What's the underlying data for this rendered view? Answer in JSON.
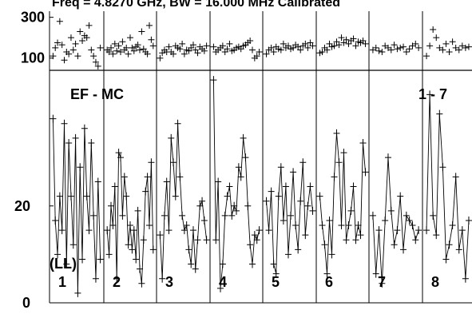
{
  "chart_data": {
    "type": "line",
    "header_text": "Freq = 4.8270 GHz, BW = 16.000 MHz  Calibrated",
    "plot_label": "EF - MC",
    "range_label": "1 - 7",
    "pol_label": "(LL)",
    "top_panel": {
      "ylim": [
        40,
        330
      ],
      "y_ticks": [
        "300",
        "100"
      ],
      "y_tick_values": [
        300,
        100
      ]
    },
    "main_panel": {
      "ylim": [
        0,
        48
      ],
      "y_ticks": [
        "20",
        "0"
      ],
      "y_tick_values": [
        20,
        0
      ]
    },
    "series": [
      {
        "label": "1",
        "amp": [
          110,
          150,
          175,
          280,
          165,
          90,
          130,
          120,
          200,
          140,
          170,
          110,
          230,
          185,
          210,
          200,
          260,
          140,
          110,
          80,
          60,
          150
        ],
        "val": [
          38,
          17,
          10,
          22,
          15,
          37,
          8,
          33,
          22,
          12,
          34,
          2,
          28,
          9,
          36,
          22,
          15,
          33,
          18,
          5,
          25,
          9
        ]
      },
      {
        "label": "2",
        "amp": [
          140,
          130,
          150,
          120,
          170,
          135,
          160,
          130,
          180,
          140,
          150,
          120,
          200,
          150,
          135,
          155,
          165,
          140,
          230,
          145,
          130,
          120,
          260,
          190,
          160
        ],
        "val": [
          15,
          10,
          20,
          16,
          24,
          5,
          31,
          30,
          18,
          26,
          22,
          12,
          16,
          11,
          15,
          9,
          19,
          7,
          4,
          13,
          23,
          26,
          16,
          29,
          11
        ]
      },
      {
        "label": "3",
        "amp": [
          100,
          125,
          140,
          130,
          155,
          130,
          120,
          160,
          150,
          145,
          170,
          120,
          140,
          135,
          150,
          165,
          140,
          125,
          155,
          145,
          135,
          160
        ],
        "val": [
          14,
          5,
          18,
          25,
          15,
          34,
          29,
          22,
          37,
          26,
          18,
          15,
          16,
          11,
          8,
          15,
          7,
          13,
          20,
          21,
          17,
          13
        ]
      },
      {
        "label": "4",
        "amp": [
          155,
          130,
          140,
          150,
          160,
          130,
          145,
          170,
          135,
          140,
          150,
          155,
          145,
          160,
          165,
          175,
          185,
          140,
          100,
          110,
          130
        ],
        "val": [
          46,
          13,
          25,
          3,
          8,
          18,
          22,
          24,
          18,
          20,
          19,
          28,
          26,
          34,
          30,
          20,
          12,
          8,
          14,
          13,
          15
        ]
      },
      {
        "label": "5",
        "amp": [
          120,
          140,
          150,
          130,
          155,
          145,
          140,
          170,
          150,
          160,
          145,
          150,
          165,
          155,
          140,
          160,
          170,
          150,
          175,
          160
        ],
        "val": [
          21,
          15,
          23,
          8,
          6,
          22,
          28,
          17,
          24,
          10,
          18,
          27,
          16,
          11,
          21,
          29,
          14,
          20,
          24,
          19
        ]
      },
      {
        "label": "6",
        "amp": [
          125,
          130,
          150,
          140,
          170,
          155,
          160,
          180,
          165,
          200,
          175,
          190,
          170,
          185,
          195,
          160,
          180,
          175,
          185,
          170
        ],
        "val": [
          22,
          16,
          12,
          6,
          17,
          10,
          26,
          35,
          29,
          16,
          31,
          13,
          16,
          19,
          24,
          13,
          16,
          14,
          33,
          27
        ]
      },
      {
        "label": "7",
        "amp": [
          140,
          150,
          135,
          130,
          160,
          150,
          140,
          165,
          145,
          150,
          155,
          130,
          145,
          160,
          170,
          150
        ],
        "val": [
          18,
          6,
          15,
          4,
          17,
          30,
          19,
          12,
          15,
          22,
          11,
          18,
          17,
          16,
          13,
          15
        ]
      },
      {
        "label": "8",
        "amp": [
          110,
          160,
          240,
          200,
          150,
          140,
          170,
          130,
          180,
          150,
          140,
          160,
          150,
          155
        ],
        "val": [
          15,
          43,
          18,
          14,
          39,
          28,
          9,
          12,
          16,
          26,
          11,
          15,
          5,
          17
        ]
      }
    ]
  }
}
